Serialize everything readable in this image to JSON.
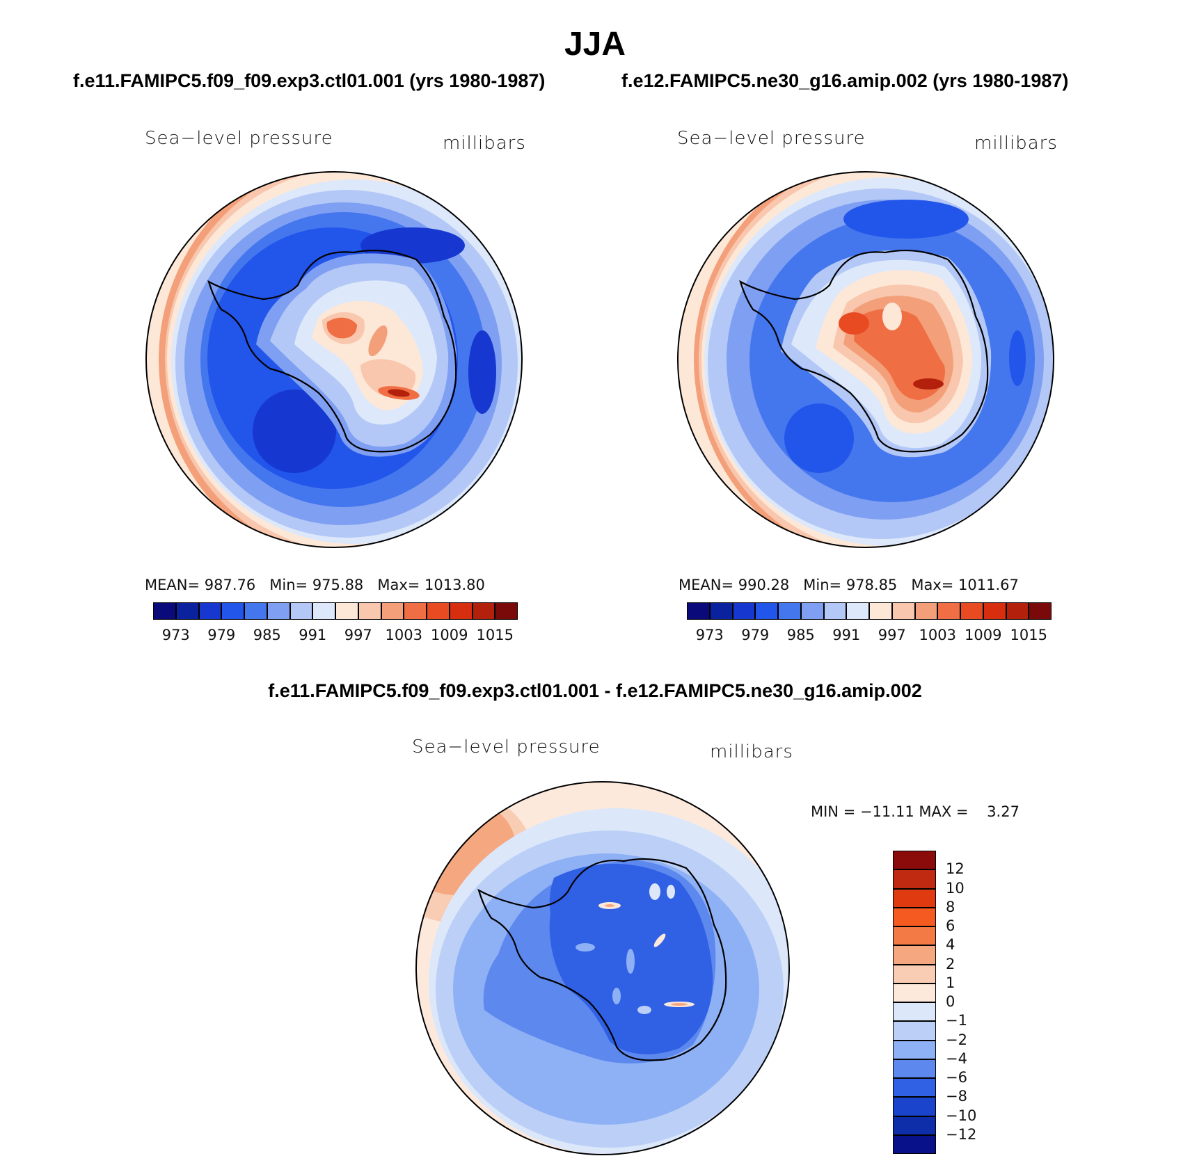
{
  "title": "JJA",
  "panels": [
    {
      "case_label": "f.e11.FAMIPC5.f09_f09.exp3.ctl01.001 (yrs 1980-1987)",
      "variable": "Sea−level pressure",
      "units": "millibars",
      "stats": {
        "mean_label": "MEAN=",
        "mean": "987.76",
        "min_label": "Min=",
        "min": "975.88",
        "max_label": "Max=",
        "max": "1013.80"
      }
    },
    {
      "case_label": "f.e12.FAMIPC5.ne30_g16.amip.002 (yrs 1980-1987)",
      "variable": "Sea−level pressure",
      "units": "millibars",
      "stats": {
        "mean_label": "MEAN=",
        "mean": "990.28",
        "min_label": "Min=",
        "min": "978.85",
        "max_label": "Max=",
        "max": "1011.67"
      }
    }
  ],
  "diff_panel": {
    "title": "f.e11.FAMIPC5.f09_f09.exp3.ctl01.001 - f.e12.FAMIPC5.ne30_g16.amip.002",
    "variable": "Sea−level pressure",
    "units": "millibars",
    "minmax_text": "MIN = −11.11 MAX =    3.27"
  },
  "chart_data": [
    {
      "type": "contour-map",
      "projection": "south polar stereographic",
      "field": "Sea-level pressure (millibars), JJA mean",
      "case": "f.e11.FAMIPC5.f09_f09.exp3.ctl01.001",
      "mean": 987.76,
      "min": 975.88,
      "max": 1013.8,
      "colorbar_labels": [
        "973",
        "979",
        "985",
        "991",
        "997",
        "1003",
        "1009",
        "1015"
      ],
      "colorbar_colors": [
        "#0a0a7a",
        "#0b229e",
        "#1638d0",
        "#2255ea",
        "#4477ee",
        "#7f9ff2",
        "#b3c8f6",
        "#dde8fa",
        "#fde8d8",
        "#f9c7ae",
        "#f3a07a",
        "#f06e44",
        "#e84a22",
        "#d62e0e",
        "#b3200c",
        "#7a0a0a"
      ]
    },
    {
      "type": "contour-map",
      "projection": "south polar stereographic",
      "field": "Sea-level pressure (millibars), JJA mean",
      "case": "f.e12.FAMIPC5.ne30_g16.amip.002",
      "mean": 990.28,
      "min": 978.85,
      "max": 1011.67,
      "colorbar_labels": [
        "973",
        "979",
        "985",
        "991",
        "997",
        "1003",
        "1009",
        "1015"
      ],
      "colorbar_colors": [
        "#0a0a7a",
        "#0b229e",
        "#1638d0",
        "#2255ea",
        "#4477ee",
        "#7f9ff2",
        "#b3c8f6",
        "#dde8fa",
        "#fde8d8",
        "#f9c7ae",
        "#f3a07a",
        "#f06e44",
        "#e84a22",
        "#d62e0e",
        "#b3200c",
        "#7a0a0a"
      ]
    },
    {
      "type": "contour-map",
      "projection": "south polar stereographic",
      "field": "Sea-level pressure difference (millibars)",
      "min": -11.11,
      "max": 3.27,
      "colorbar_labels": [
        "12",
        "10",
        "8",
        "6",
        "4",
        "2",
        "1",
        "0",
        "−1",
        "−2",
        "−4",
        "−6",
        "−8",
        "−10",
        "−12"
      ],
      "colorbar_colors": [
        "#8b0a0a",
        "#c02a10",
        "#e03a10",
        "#f55a20",
        "#f37a44",
        "#f5a880",
        "#f9ccb4",
        "#fde9dc",
        "#dce8fa",
        "#bcd0f7",
        "#8eb0f4",
        "#5d88ee",
        "#3060e4",
        "#1a44cc",
        "#0d2ea8",
        "#08108a"
      ]
    }
  ]
}
